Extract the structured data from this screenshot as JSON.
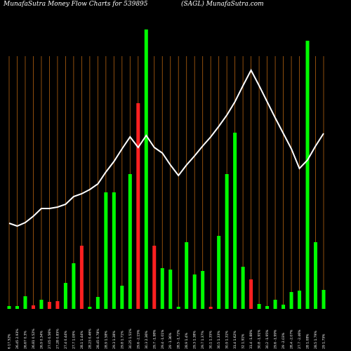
{
  "chart_data": {
    "type": "bar-line",
    "title": "MunafaSutra  Money Flow  Charts for 539895",
    "subtitle": "(SAGL) MunafaSutra.com",
    "categories": [
      "6 17.52%",
      "26.45 2.93%",
      "26.67 0.3%",
      "26.81 0.52%",
      "26.9 0.34%",
      "27.05 0.56%",
      "27.28 0.85%",
      "27.4 0.44%",
      "27.7 1.09%",
      "28.1 1.44%",
      "28.23 0.46%",
      "28.45 0.78%",
      "28.9 1.58%",
      "29.3 1.38%",
      "29.8 1.71%",
      "30.25 1.51%",
      "29.6 -2.15%",
      "30.3 2.36%",
      "29.7 -1.98%",
      "29.4 -1.01%",
      "29 -1.36%",
      "28.5 -1.72%",
      "28.9 1.4%",
      "29.3 1.38%",
      "29.7 1.37%",
      "30.1 1.35%",
      "30.5 1.33%",
      "30.9 1.31%",
      "31.4 1.62%",
      "32 1.91%",
      "31.4 -1.88%",
      "30.8 -1.91%",
      "30.2 -1.95%",
      "29.6 -1.99%",
      "29 -2.03%",
      "28.4 -2.07%",
      "27.7 -2.46%",
      "28 1.08%",
      "28.5 1.79%",
      "29 1.75%"
    ],
    "bars": {
      "values": [
        4,
        4,
        18,
        5,
        13,
        10,
        11,
        37,
        65,
        90,
        3,
        17,
        166,
        166,
        33,
        192,
        293,
        398,
        90,
        58,
        56,
        3,
        95,
        49,
        54,
        3,
        104,
        192,
        251,
        60,
        42,
        7,
        4,
        13,
        6,
        24,
        26,
        382,
        95,
        27
      ],
      "colors": [
        "#00ff00",
        "#00ff00",
        "#00ff00",
        "#ff2020",
        "#00ff00",
        "#ff2020",
        "#ff2020",
        "#00ff00",
        "#00ff00",
        "#ff2020",
        "#00ff00",
        "#00ff00",
        "#00ff00",
        "#00ff00",
        "#00ff00",
        "#00ff00",
        "#ff2020",
        "#00ff00",
        "#ff2020",
        "#00ff00",
        "#00ff00",
        "#00ff00",
        "#00ff00",
        "#00ff00",
        "#00ff00",
        "#ff2020",
        "#00ff00",
        "#00ff00",
        "#00ff00",
        "#00ff00",
        "#ff2020",
        "#00ff00",
        "#00ff00",
        "#00ff00",
        "#00ff00",
        "#00ff00",
        "#00ff00",
        "#00ff00",
        "#00ff00",
        "#00ff00"
      ]
    },
    "line": {
      "color": "#ffffff",
      "values": [
        122,
        118,
        123,
        132,
        143,
        143,
        145,
        149,
        160,
        164,
        170,
        178,
        195,
        210,
        228,
        245,
        230,
        247,
        230,
        222,
        205,
        190,
        205,
        218,
        232,
        245,
        260,
        276,
        295,
        318,
        340,
        318,
        295,
        272,
        250,
        228,
        200,
        212,
        232,
        250
      ]
    },
    "ylim": [
      0,
      400
    ]
  }
}
